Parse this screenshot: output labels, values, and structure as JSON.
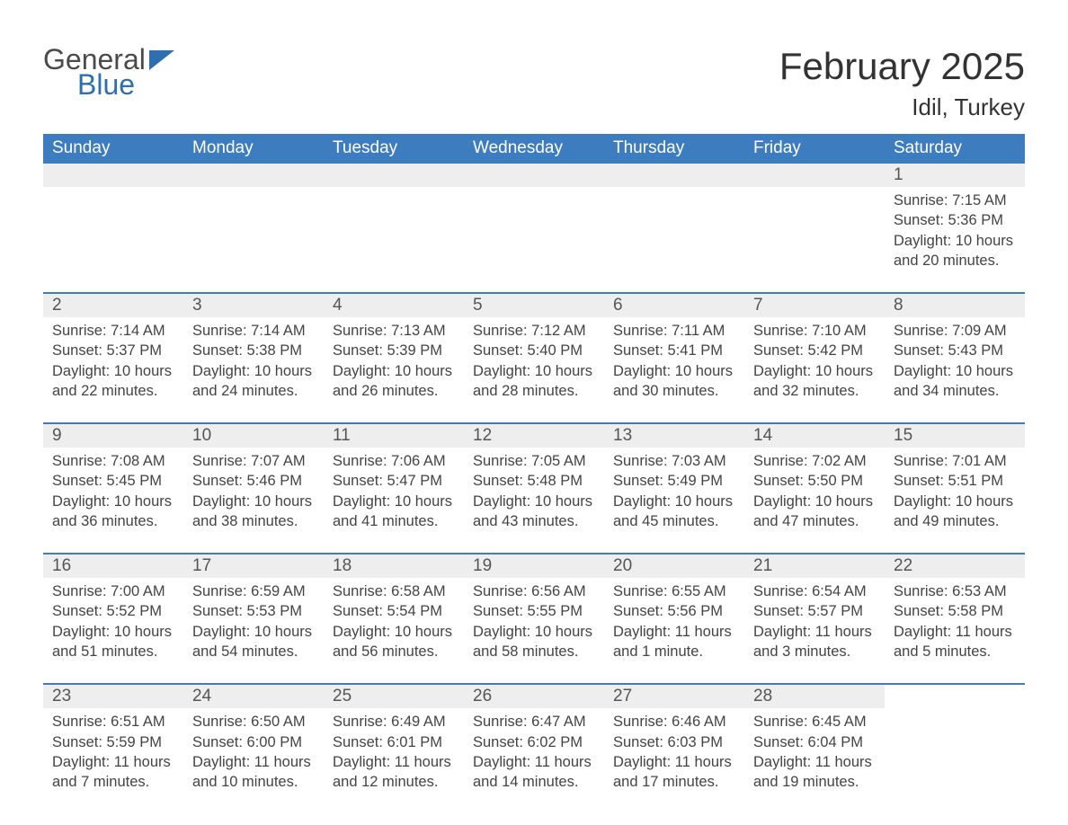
{
  "logo": {
    "word1": "General",
    "word2": "Blue"
  },
  "title": "February 2025",
  "location": "Idil, Turkey",
  "colors": {
    "header_bg": "#3d7cbf",
    "header_text": "#ffffff",
    "daynum_bg": "#eeeeee",
    "border": "#3d7cbf",
    "text": "#444444",
    "logo_blue": "#2e6fb0"
  },
  "day_headers": [
    "Sunday",
    "Monday",
    "Tuesday",
    "Wednesday",
    "Thursday",
    "Friday",
    "Saturday"
  ],
  "weeks": [
    [
      {
        "empty": true
      },
      {
        "empty": true
      },
      {
        "empty": true
      },
      {
        "empty": true
      },
      {
        "empty": true
      },
      {
        "empty": true
      },
      {
        "day": "1",
        "sunrise": "Sunrise: 7:15 AM",
        "sunset": "Sunset: 5:36 PM",
        "daylight": "Daylight: 10 hours and 20 minutes."
      }
    ],
    [
      {
        "day": "2",
        "sunrise": "Sunrise: 7:14 AM",
        "sunset": "Sunset: 5:37 PM",
        "daylight": "Daylight: 10 hours and 22 minutes."
      },
      {
        "day": "3",
        "sunrise": "Sunrise: 7:14 AM",
        "sunset": "Sunset: 5:38 PM",
        "daylight": "Daylight: 10 hours and 24 minutes."
      },
      {
        "day": "4",
        "sunrise": "Sunrise: 7:13 AM",
        "sunset": "Sunset: 5:39 PM",
        "daylight": "Daylight: 10 hours and 26 minutes."
      },
      {
        "day": "5",
        "sunrise": "Sunrise: 7:12 AM",
        "sunset": "Sunset: 5:40 PM",
        "daylight": "Daylight: 10 hours and 28 minutes."
      },
      {
        "day": "6",
        "sunrise": "Sunrise: 7:11 AM",
        "sunset": "Sunset: 5:41 PM",
        "daylight": "Daylight: 10 hours and 30 minutes."
      },
      {
        "day": "7",
        "sunrise": "Sunrise: 7:10 AM",
        "sunset": "Sunset: 5:42 PM",
        "daylight": "Daylight: 10 hours and 32 minutes."
      },
      {
        "day": "8",
        "sunrise": "Sunrise: 7:09 AM",
        "sunset": "Sunset: 5:43 PM",
        "daylight": "Daylight: 10 hours and 34 minutes."
      }
    ],
    [
      {
        "day": "9",
        "sunrise": "Sunrise: 7:08 AM",
        "sunset": "Sunset: 5:45 PM",
        "daylight": "Daylight: 10 hours and 36 minutes."
      },
      {
        "day": "10",
        "sunrise": "Sunrise: 7:07 AM",
        "sunset": "Sunset: 5:46 PM",
        "daylight": "Daylight: 10 hours and 38 minutes."
      },
      {
        "day": "11",
        "sunrise": "Sunrise: 7:06 AM",
        "sunset": "Sunset: 5:47 PM",
        "daylight": "Daylight: 10 hours and 41 minutes."
      },
      {
        "day": "12",
        "sunrise": "Sunrise: 7:05 AM",
        "sunset": "Sunset: 5:48 PM",
        "daylight": "Daylight: 10 hours and 43 minutes."
      },
      {
        "day": "13",
        "sunrise": "Sunrise: 7:03 AM",
        "sunset": "Sunset: 5:49 PM",
        "daylight": "Daylight: 10 hours and 45 minutes."
      },
      {
        "day": "14",
        "sunrise": "Sunrise: 7:02 AM",
        "sunset": "Sunset: 5:50 PM",
        "daylight": "Daylight: 10 hours and 47 minutes."
      },
      {
        "day": "15",
        "sunrise": "Sunrise: 7:01 AM",
        "sunset": "Sunset: 5:51 PM",
        "daylight": "Daylight: 10 hours and 49 minutes."
      }
    ],
    [
      {
        "day": "16",
        "sunrise": "Sunrise: 7:00 AM",
        "sunset": "Sunset: 5:52 PM",
        "daylight": "Daylight: 10 hours and 51 minutes."
      },
      {
        "day": "17",
        "sunrise": "Sunrise: 6:59 AM",
        "sunset": "Sunset: 5:53 PM",
        "daylight": "Daylight: 10 hours and 54 minutes."
      },
      {
        "day": "18",
        "sunrise": "Sunrise: 6:58 AM",
        "sunset": "Sunset: 5:54 PM",
        "daylight": "Daylight: 10 hours and 56 minutes."
      },
      {
        "day": "19",
        "sunrise": "Sunrise: 6:56 AM",
        "sunset": "Sunset: 5:55 PM",
        "daylight": "Daylight: 10 hours and 58 minutes."
      },
      {
        "day": "20",
        "sunrise": "Sunrise: 6:55 AM",
        "sunset": "Sunset: 5:56 PM",
        "daylight": "Daylight: 11 hours and 1 minute."
      },
      {
        "day": "21",
        "sunrise": "Sunrise: 6:54 AM",
        "sunset": "Sunset: 5:57 PM",
        "daylight": "Daylight: 11 hours and 3 minutes."
      },
      {
        "day": "22",
        "sunrise": "Sunrise: 6:53 AM",
        "sunset": "Sunset: 5:58 PM",
        "daylight": "Daylight: 11 hours and 5 minutes."
      }
    ],
    [
      {
        "day": "23",
        "sunrise": "Sunrise: 6:51 AM",
        "sunset": "Sunset: 5:59 PM",
        "daylight": "Daylight: 11 hours and 7 minutes."
      },
      {
        "day": "24",
        "sunrise": "Sunrise: 6:50 AM",
        "sunset": "Sunset: 6:00 PM",
        "daylight": "Daylight: 11 hours and 10 minutes."
      },
      {
        "day": "25",
        "sunrise": "Sunrise: 6:49 AM",
        "sunset": "Sunset: 6:01 PM",
        "daylight": "Daylight: 11 hours and 12 minutes."
      },
      {
        "day": "26",
        "sunrise": "Sunrise: 6:47 AM",
        "sunset": "Sunset: 6:02 PM",
        "daylight": "Daylight: 11 hours and 14 minutes."
      },
      {
        "day": "27",
        "sunrise": "Sunrise: 6:46 AM",
        "sunset": "Sunset: 6:03 PM",
        "daylight": "Daylight: 11 hours and 17 minutes."
      },
      {
        "day": "28",
        "sunrise": "Sunrise: 6:45 AM",
        "sunset": "Sunset: 6:04 PM",
        "daylight": "Daylight: 11 hours and 19 minutes."
      },
      {
        "empty": true,
        "trailing": true
      }
    ]
  ]
}
